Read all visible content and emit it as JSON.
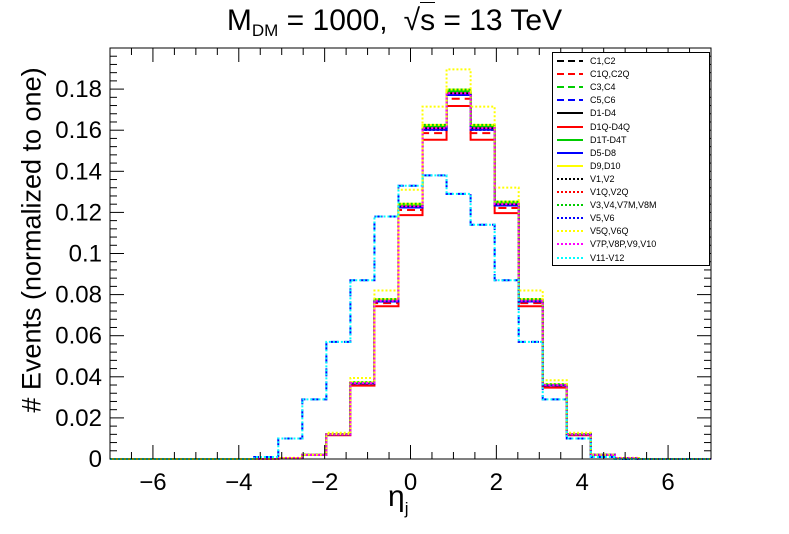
{
  "title": {
    "main": "M",
    "sub": "DM",
    "middle": " = 1000,",
    "sqrt": "√",
    "sqrt_arg": "s",
    "tail": " = 13 TeV"
  },
  "chart_data": {
    "type": "histogram",
    "title": "M_DM = 1000,  √s = 13 TeV",
    "xlabel": {
      "main": "η",
      "sub": "j"
    },
    "ylabel": "# Events (normalized to one)",
    "xlim": [
      -7,
      7
    ],
    "ylim": [
      0,
      0.2
    ],
    "xticks": [
      -6,
      -4,
      -2,
      0,
      2,
      4,
      6
    ],
    "xtick_labels": [
      "−6",
      "−4",
      "−2",
      "0",
      "2",
      "4",
      "6"
    ],
    "yticks": [
      0,
      0.02,
      0.04,
      0.06,
      0.08,
      0.1,
      0.12,
      0.14,
      0.16,
      0.18
    ],
    "ytick_labels": [
      "0",
      "0.02",
      "0.04",
      "0.06",
      "0.08",
      "0.1",
      "0.12",
      "0.14",
      "0.16",
      "0.18"
    ],
    "bin_width": 0.56,
    "bin_start": -7,
    "legend_position": "top-right",
    "profiles": {
      "narrow": [
        0,
        0,
        0,
        0,
        0,
        0,
        0,
        0.0005,
        0.002,
        0.012,
        0.037,
        0.077,
        0.123,
        0.161,
        0.178,
        0.161,
        0.124,
        0.077,
        0.036,
        0.012,
        0.002,
        0.0005,
        0,
        0,
        0
      ],
      "wide": [
        0,
        0,
        0,
        0,
        0,
        0,
        0.001,
        0.01,
        0.029,
        0.057,
        0.087,
        0.118,
        0.133,
        0.138,
        0.129,
        0.114,
        0.087,
        0.057,
        0.029,
        0.01,
        0.001,
        0,
        0,
        0,
        0
      ]
    },
    "series": [
      {
        "name": "C1,C2",
        "color": "#000000",
        "dash": "dashed",
        "profile": "narrow",
        "scale": 1.0
      },
      {
        "name": "C1Q,C2Q",
        "color": "#ff0000",
        "dash": "dashed",
        "profile": "narrow",
        "scale": 0.985
      },
      {
        "name": "C3,C4",
        "color": "#00cc00",
        "dash": "dashed",
        "profile": "narrow",
        "scale": 1.005
      },
      {
        "name": "C5,C6",
        "color": "#0000ff",
        "dash": "dashed",
        "profile": "wide",
        "scale": 1.0
      },
      {
        "name": "D1-D4",
        "color": "#000000",
        "dash": "solid",
        "profile": "narrow",
        "scale": 1.0
      },
      {
        "name": "D1Q-D4Q",
        "color": "#ff0000",
        "dash": "solid",
        "profile": "narrow",
        "scale": 0.965
      },
      {
        "name": "D1T-D4T",
        "color": "#00cc00",
        "dash": "solid",
        "profile": "narrow",
        "scale": 1.005
      },
      {
        "name": "D5-D8",
        "color": "#0000ff",
        "dash": "solid",
        "profile": "narrow",
        "scale": 0.995
      },
      {
        "name": "D9,D10",
        "color": "#ffff00",
        "dash": "solid",
        "profile": "narrow",
        "scale": 1.01
      },
      {
        "name": "V1,V2",
        "color": "#000000",
        "dash": "dotted",
        "profile": "narrow",
        "scale": 0.995
      },
      {
        "name": "V1Q,V2Q",
        "color": "#ff0000",
        "dash": "dotted",
        "profile": "narrow",
        "scale": 1.0
      },
      {
        "name": "V3,V4,V7M,V8M",
        "color": "#00cc00",
        "dash": "dotted",
        "profile": "narrow",
        "scale": 1.01
      },
      {
        "name": "V5,V6",
        "color": "#0000ff",
        "dash": "dotted",
        "profile": "narrow",
        "scale": 0.995
      },
      {
        "name": "V5Q,V6Q",
        "color": "#ffff00",
        "dash": "dotted",
        "profile": "narrow",
        "scale": 1.065
      },
      {
        "name": "V7P,V8P,V9,V10",
        "color": "#ff00ff",
        "dash": "dotted",
        "profile": "narrow",
        "scale": 1.0
      },
      {
        "name": "V11-V12",
        "color": "#00ffff",
        "dash": "dotted",
        "profile": "wide",
        "scale": 1.0
      }
    ]
  }
}
